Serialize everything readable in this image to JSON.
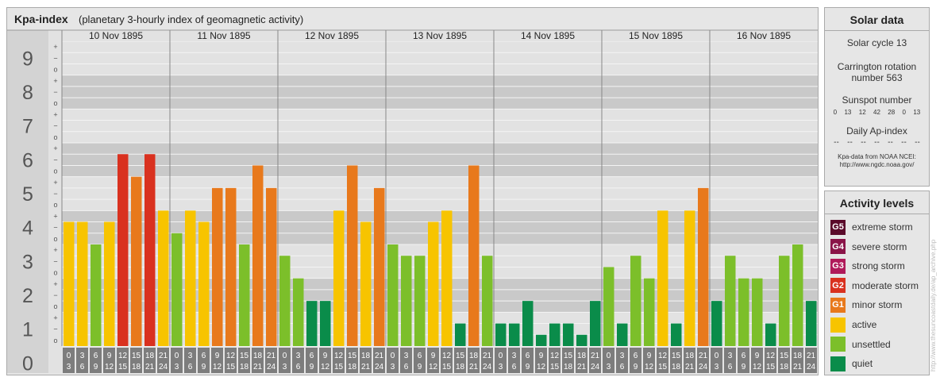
{
  "chart": {
    "title": "Kpa-index",
    "subtitle": "(planetary 3-hourly index of geomagnetic activity)"
  },
  "chart_data": {
    "type": "bar",
    "ylim": [
      0,
      9
    ],
    "y_ticks": [
      "0",
      "1",
      "2",
      "3",
      "4",
      "5",
      "6",
      "7",
      "8",
      "9"
    ],
    "minor_ticks": [
      "+",
      "o",
      "−"
    ],
    "days": [
      "10 Nov 1895",
      "11 Nov 1895",
      "12 Nov 1895",
      "13 Nov 1895",
      "14 Nov 1895",
      "15 Nov 1895",
      "16 Nov 1895"
    ],
    "interval_labels": [
      [
        "0",
        "3"
      ],
      [
        "3",
        "6"
      ],
      [
        "6",
        "9"
      ],
      [
        "9",
        "12"
      ],
      [
        "12",
        "15"
      ],
      [
        "15",
        "18"
      ],
      [
        "18",
        "21"
      ],
      [
        "21",
        "24"
      ]
    ],
    "values": [
      [
        3.667,
        3.667,
        3.0,
        3.667,
        5.667,
        5.0,
        5.667,
        4.0
      ],
      [
        3.333,
        4.0,
        3.667,
        4.667,
        4.667,
        3.0,
        5.333,
        4.667
      ],
      [
        2.667,
        2.0,
        1.333,
        1.333,
        4.0,
        5.333,
        3.667,
        4.667
      ],
      [
        3.0,
        2.667,
        2.667,
        3.667,
        4.0,
        0.667,
        5.333,
        2.667
      ],
      [
        0.667,
        0.667,
        1.333,
        0.333,
        0.667,
        0.667,
        0.333,
        1.333
      ],
      [
        2.333,
        0.667,
        2.667,
        2.0,
        4.0,
        0.667,
        4.0,
        4.667
      ],
      [
        1.333,
        2.667,
        2.0,
        2.0,
        0.667,
        2.667,
        3.0,
        1.333
      ]
    ]
  },
  "colors": {
    "quiet": "#0a8c4a",
    "unsettled": "#7cbf2a",
    "active": "#f7c400",
    "minor_storm": "#e8791c",
    "moderate_storm": "#d9311f",
    "strong_storm": "#b01a5a",
    "severe_storm": "#8a1448",
    "extreme_storm": "#5a0a2a"
  },
  "solar": {
    "title": "Solar data",
    "cycle": "Solar cycle 13",
    "carrington_1": "Carrington rotation",
    "carrington_2": "number 563",
    "sunspot_title": "Sunspot number",
    "sunspots": [
      "0",
      "13",
      "12",
      "42",
      "28",
      "0",
      "13"
    ],
    "ap_title": "Daily Ap-index",
    "ap_values": [
      "--",
      "--",
      "--",
      "--",
      "--",
      "--",
      "--"
    ],
    "source_1": "Kpa-data from NOAA NCEI:",
    "source_2": "http://www.ngdc.noaa.gov/"
  },
  "activity": {
    "title": "Activity levels",
    "levels": [
      {
        "code": "G5",
        "label": "extreme storm",
        "color": "#5a0a2a"
      },
      {
        "code": "G4",
        "label": "severe storm",
        "color": "#8a1448"
      },
      {
        "code": "G3",
        "label": "strong storm",
        "color": "#b01a5a"
      },
      {
        "code": "G2",
        "label": "moderate storm",
        "color": "#d9311f"
      },
      {
        "code": "G1",
        "label": "minor storm",
        "color": "#e8791c"
      },
      {
        "code": "",
        "label": "active",
        "color": "#f7c400"
      },
      {
        "code": "",
        "label": "unsettled",
        "color": "#7cbf2a"
      },
      {
        "code": "",
        "label": "quiet",
        "color": "#0a8c4a"
      }
    ]
  },
  "watermark": "http://www.thesuncoastdaily.de/ap_archive.php"
}
